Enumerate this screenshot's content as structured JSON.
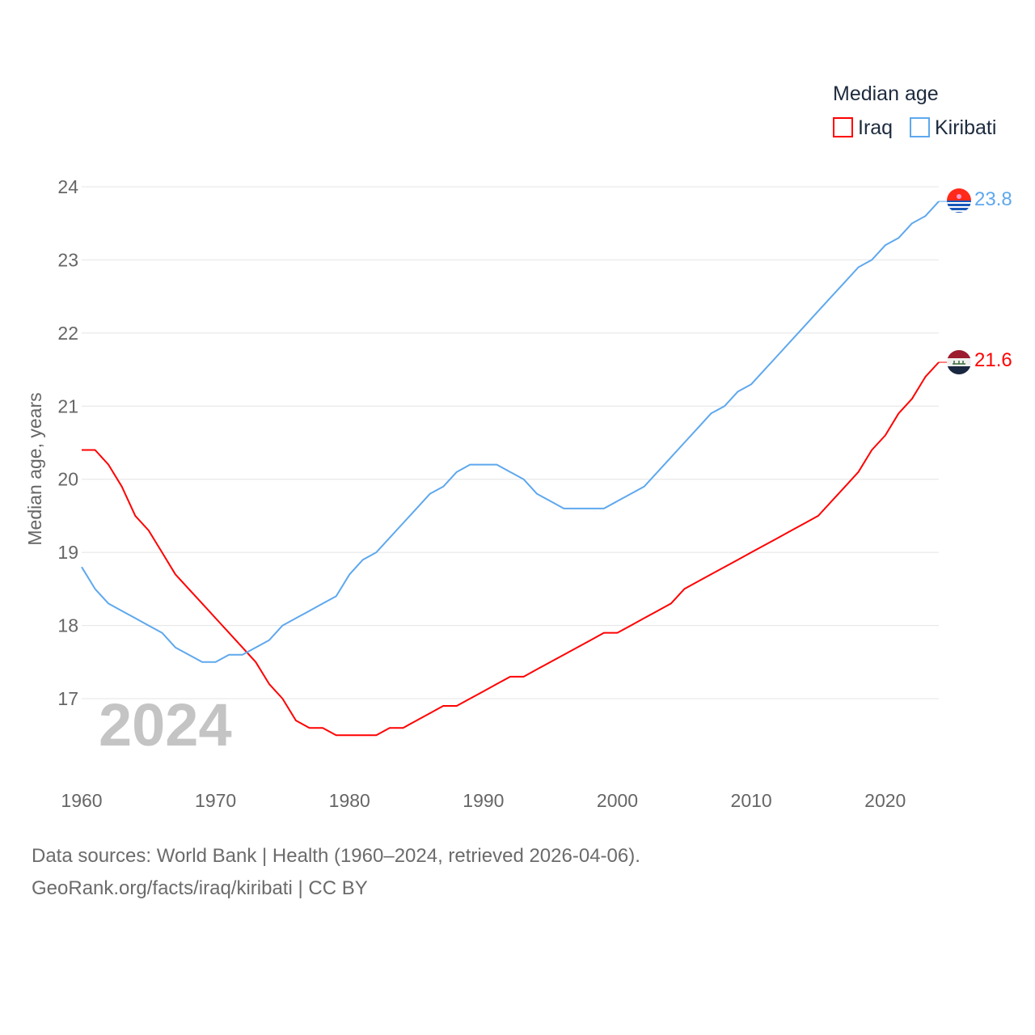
{
  "chart_data": {
    "type": "line",
    "title": "",
    "ylabel": "Median age, years",
    "xlabel": "",
    "legend_title": "Median age",
    "legend_position": "top-right",
    "year_label": "2024",
    "xlim": [
      1960,
      2024
    ],
    "ylim": [
      16,
      24
    ],
    "x_ticks": [
      "1960",
      "1970",
      "1980",
      "1990",
      "2000",
      "2010",
      "2020"
    ],
    "y_ticks": [
      "17",
      "18",
      "19",
      "20",
      "21",
      "22",
      "23",
      "24"
    ],
    "grid": true,
    "x": [
      1960,
      1961,
      1962,
      1963,
      1964,
      1965,
      1966,
      1967,
      1968,
      1969,
      1970,
      1971,
      1972,
      1973,
      1974,
      1975,
      1976,
      1977,
      1978,
      1979,
      1980,
      1981,
      1982,
      1983,
      1984,
      1985,
      1986,
      1987,
      1988,
      1989,
      1990,
      1991,
      1992,
      1993,
      1994,
      1995,
      1996,
      1997,
      1998,
      1999,
      2000,
      2001,
      2002,
      2003,
      2004,
      2005,
      2006,
      2007,
      2008,
      2009,
      2010,
      2011,
      2012,
      2013,
      2014,
      2015,
      2016,
      2017,
      2018,
      2019,
      2020,
      2021,
      2022,
      2023,
      2024
    ],
    "series": [
      {
        "name": "Iraq",
        "color": "#ff0000",
        "end_label": "21.6",
        "flag": "iraq-flag",
        "values": [
          20.4,
          20.4,
          20.2,
          19.9,
          19.5,
          19.3,
          19.0,
          18.7,
          18.5,
          18.3,
          18.1,
          17.9,
          17.7,
          17.5,
          17.2,
          17.0,
          16.7,
          16.6,
          16.6,
          16.5,
          16.5,
          16.5,
          16.5,
          16.6,
          16.6,
          16.7,
          16.8,
          16.9,
          16.9,
          17.0,
          17.1,
          17.2,
          17.3,
          17.3,
          17.4,
          17.5,
          17.6,
          17.7,
          17.8,
          17.9,
          17.9,
          18.0,
          18.1,
          18.2,
          18.3,
          18.5,
          18.6,
          18.7,
          18.8,
          18.9,
          19.0,
          19.1,
          19.2,
          19.3,
          19.4,
          19.5,
          19.7,
          19.9,
          20.1,
          20.4,
          20.6,
          20.9,
          21.1,
          21.4,
          21.6
        ]
      },
      {
        "name": "Kiribati",
        "color": "#5ea8ee",
        "end_label": "23.8",
        "flag": "kiribati-flag",
        "values": [
          18.8,
          18.5,
          18.3,
          18.2,
          18.1,
          18.0,
          17.9,
          17.7,
          17.6,
          17.5,
          17.5,
          17.6,
          17.6,
          17.7,
          17.8,
          18.0,
          18.1,
          18.2,
          18.3,
          18.4,
          18.7,
          18.9,
          19.0,
          19.2,
          19.4,
          19.6,
          19.8,
          19.9,
          20.1,
          20.2,
          20.2,
          20.2,
          20.1,
          20.0,
          19.8,
          19.7,
          19.6,
          19.6,
          19.6,
          19.6,
          19.7,
          19.8,
          19.9,
          20.1,
          20.3,
          20.5,
          20.7,
          20.9,
          21.0,
          21.2,
          21.3,
          21.5,
          21.7,
          21.9,
          22.1,
          22.3,
          22.5,
          22.7,
          22.9,
          23.0,
          23.2,
          23.3,
          23.5,
          23.6,
          23.8
        ]
      }
    ]
  },
  "footer": {
    "sources": "Data sources: World Bank | Health (1960–2024, retrieved 2026-04-06).",
    "credit": "GeoRank.org/facts/iraq/kiribati | CC BY"
  }
}
